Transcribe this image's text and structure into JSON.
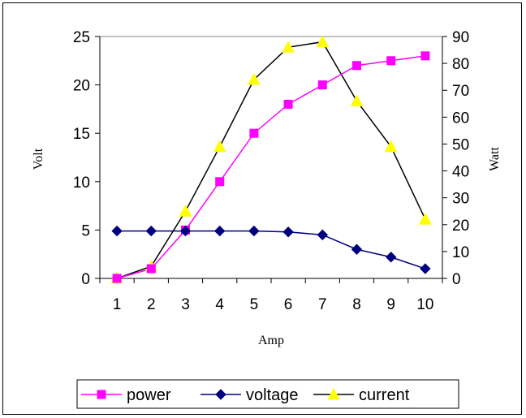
{
  "chart_data": {
    "type": "line",
    "xlabel": "Amp",
    "ylabel_left": "Volt",
    "ylabel_right": "Watt",
    "categories": [
      "1",
      "2",
      "3",
      "4",
      "5",
      "6",
      "7",
      "8",
      "9",
      "10"
    ],
    "y_left": {
      "range": [
        0,
        25
      ],
      "ticks": [
        "0",
        "5",
        "10",
        "15",
        "20",
        "25"
      ]
    },
    "y_right": {
      "range": [
        0,
        90
      ],
      "ticks": [
        "0",
        "10",
        "20",
        "30",
        "40",
        "50",
        "60",
        "70",
        "80",
        "90"
      ]
    },
    "grid": false,
    "legend_position": "bottom",
    "series": [
      {
        "name": "power",
        "axis": "left",
        "color": "#ff00ff",
        "marker": "square",
        "values": [
          0,
          1,
          5,
          10,
          15,
          18,
          20,
          22,
          22.5,
          23
        ]
      },
      {
        "name": "voltage",
        "axis": "left",
        "color": "#000080",
        "marker": "diamond",
        "values": [
          4.9,
          4.9,
          4.9,
          4.9,
          4.9,
          4.8,
          4.5,
          3,
          2.2,
          1
        ]
      },
      {
        "name": "current",
        "axis": "right",
        "color": "#000000",
        "marker": "triangle",
        "marker_color": "#ffff00",
        "values": [
          0,
          4.5,
          25,
          49,
          74,
          86,
          88,
          66,
          49,
          22
        ]
      }
    ]
  }
}
